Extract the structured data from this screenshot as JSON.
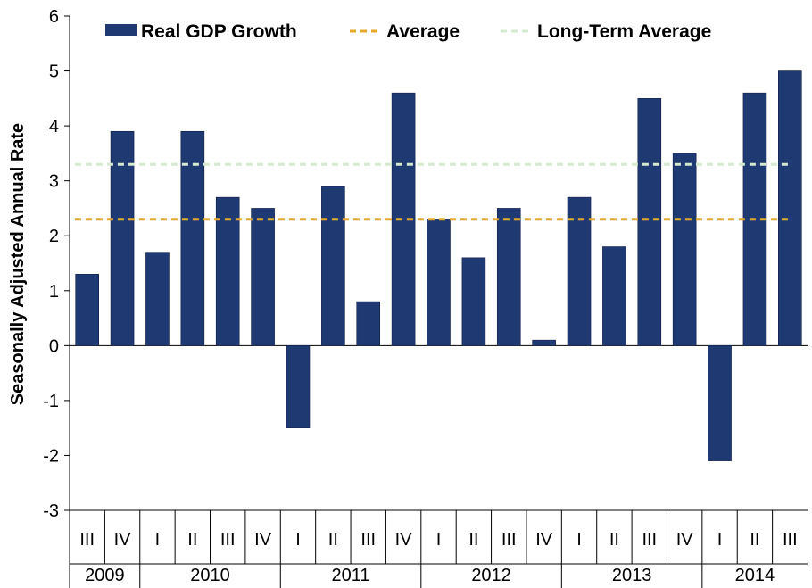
{
  "chart_data": {
    "type": "bar",
    "title": "",
    "xlabel": "",
    "ylabel": "Seasonally Adjusted Annual Rate",
    "ylim": [
      -3,
      6
    ],
    "yticks": [
      "-3",
      "-2",
      "-1",
      "0",
      "1",
      "2",
      "3",
      "4",
      "5",
      "6"
    ],
    "grid": false,
    "legend_position": "top",
    "categories": [
      "III",
      "IV",
      "I",
      "II",
      "III",
      "IV",
      "I",
      "II",
      "III",
      "IV",
      "I",
      "II",
      "III",
      "IV",
      "I",
      "II",
      "III",
      "IV",
      "I",
      "II",
      "III"
    ],
    "years": [
      {
        "label": "2009",
        "quarters": 2
      },
      {
        "label": "2010",
        "quarters": 4
      },
      {
        "label": "2011",
        "quarters": 4
      },
      {
        "label": "2012",
        "quarters": 4
      },
      {
        "label": "2013",
        "quarters": 4
      },
      {
        "label": "2014",
        "quarters": 3
      }
    ],
    "series": [
      {
        "name": "Real GDP Growth",
        "color": "#1f3a73",
        "values": [
          1.3,
          3.9,
          1.7,
          3.9,
          2.7,
          2.5,
          -1.5,
          2.9,
          0.8,
          4.6,
          2.3,
          1.6,
          2.5,
          0.1,
          2.7,
          1.8,
          4.5,
          3.5,
          -2.1,
          4.6,
          5.0
        ]
      },
      {
        "name": "Average",
        "color": "#e6a82a",
        "style": "dashed",
        "value": 2.3
      },
      {
        "name": "Long-Term Average",
        "color": "#d6ead0",
        "style": "dashed",
        "value": 3.3
      }
    ]
  }
}
